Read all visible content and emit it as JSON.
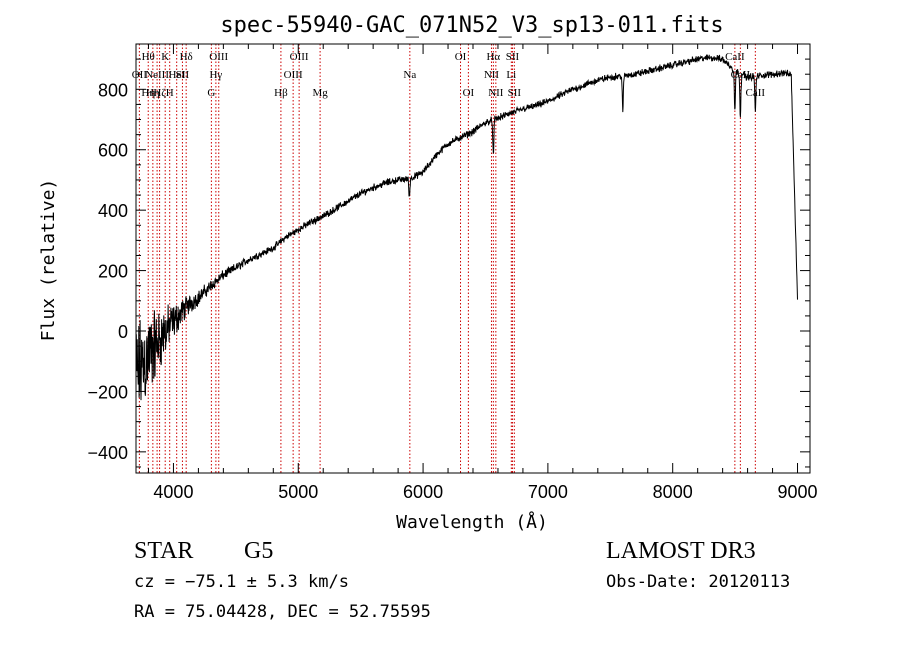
{
  "chart_data": {
    "type": "line",
    "title": "spec-55940-GAC_071N52_V3_sp13-011.fits",
    "xlabel": "Wavelength (Å)",
    "ylabel": "Flux (relative)",
    "xlim": [
      3700,
      9100
    ],
    "ylim": [
      -470,
      950
    ],
    "xticks": [
      4000,
      5000,
      6000,
      7000,
      8000,
      9000
    ],
    "yticks": [
      -400,
      -200,
      0,
      200,
      400,
      600,
      800
    ],
    "x_minor_step": 200,
    "y_minor_step": 50,
    "spectrum": {
      "x": [
        3700,
        3800,
        3900,
        4000,
        4100,
        4200,
        4300,
        4400,
        4500,
        4600,
        4700,
        4800,
        4900,
        5000,
        5100,
        5200,
        5300,
        5400,
        5500,
        5600,
        5700,
        5800,
        5900,
        6000,
        6100,
        6200,
        6300,
        6400,
        6500,
        6600,
        6700,
        6800,
        6900,
        7000,
        7100,
        7200,
        7300,
        7400,
        7500,
        7600,
        7700,
        7800,
        7900,
        8000,
        8100,
        8200,
        8300,
        8400,
        8500,
        8600,
        8700,
        8800,
        8900,
        8950,
        9000
      ],
      "y": [
        -150,
        -80,
        -20,
        30,
        80,
        110,
        150,
        185,
        210,
        235,
        255,
        275,
        310,
        335,
        360,
        380,
        405,
        430,
        455,
        475,
        490,
        500,
        505,
        525,
        580,
        620,
        640,
        660,
        690,
        705,
        720,
        735,
        745,
        760,
        780,
        800,
        815,
        830,
        840,
        845,
        850,
        860,
        870,
        880,
        890,
        900,
        905,
        900,
        860,
        840,
        845,
        850,
        855,
        845,
        100
      ],
      "noise_amplitude": [
        220,
        180,
        120,
        70,
        45,
        30,
        25,
        20,
        18,
        16,
        14,
        14,
        14,
        14,
        14,
        14,
        14,
        14,
        14,
        14,
        14,
        14,
        14,
        14,
        14,
        14,
        14,
        14,
        14,
        14,
        14,
        14,
        14,
        14,
        14,
        14,
        14,
        14,
        14,
        14,
        14,
        14,
        14,
        14,
        14,
        14,
        14,
        14,
        14,
        14,
        14,
        14,
        14,
        14,
        14
      ],
      "absorption_dips": [
        {
          "x": 5890,
          "depth": 60
        },
        {
          "x": 6563,
          "depth": 120
        },
        {
          "x": 7600,
          "depth": 120
        },
        {
          "x": 8498,
          "depth": 130
        },
        {
          "x": 8542,
          "depth": 140
        },
        {
          "x": 8662,
          "depth": 120
        }
      ]
    },
    "lines": [
      {
        "x": 3727,
        "labels": [
          "OII"
        ],
        "rows": [
          1
        ]
      },
      {
        "x": 3798,
        "labels": [
          "Hθ",
          "Hη"
        ],
        "rows": [
          0,
          2
        ]
      },
      {
        "x": 3835,
        "labels": [
          "Hη"
        ],
        "rows": [
          2
        ]
      },
      {
        "x": 3869,
        "labels": [
          "NeIII"
        ],
        "rows": [
          1
        ]
      },
      {
        "x": 3889,
        "labels": [
          "Hζ"
        ],
        "rows": [
          2
        ]
      },
      {
        "x": 3934,
        "labels": [
          "K"
        ],
        "rows": [
          0
        ]
      },
      {
        "x": 3970,
        "labels": [
          "H"
        ],
        "rows": [
          2
        ]
      },
      {
        "x": 4026,
        "labels": [
          "HeI"
        ],
        "rows": [
          1
        ]
      },
      {
        "x": 4072,
        "labels": [
          "SII"
        ],
        "rows": [
          1
        ]
      },
      {
        "x": 4102,
        "labels": [
          "Hδ"
        ],
        "rows": [
          0
        ]
      },
      {
        "x": 4304,
        "labels": [
          "G"
        ],
        "rows": [
          2
        ]
      },
      {
        "x": 4340,
        "labels": [
          "Hγ"
        ],
        "rows": [
          1
        ]
      },
      {
        "x": 4363,
        "labels": [
          "OIII"
        ],
        "rows": [
          0
        ]
      },
      {
        "x": 4861,
        "labels": [
          "Hβ"
        ],
        "rows": [
          2
        ]
      },
      {
        "x": 4959,
        "labels": [
          "OIII"
        ],
        "rows": [
          1
        ]
      },
      {
        "x": 5007,
        "labels": [
          "OIII"
        ],
        "rows": [
          0
        ]
      },
      {
        "x": 5175,
        "labels": [
          "Mg"
        ],
        "rows": [
          2
        ]
      },
      {
        "x": 5894,
        "labels": [
          "Na"
        ],
        "rows": [
          1
        ]
      },
      {
        "x": 6300,
        "labels": [
          "OI"
        ],
        "rows": [
          0
        ]
      },
      {
        "x": 6363,
        "labels": [
          "OI"
        ],
        "rows": [
          2
        ]
      },
      {
        "x": 6548,
        "labels": [
          "NII"
        ],
        "rows": [
          1
        ]
      },
      {
        "x": 6563,
        "labels": [
          "Hα"
        ],
        "rows": [
          0
        ]
      },
      {
        "x": 6583,
        "labels": [
          "NII"
        ],
        "rows": [
          2
        ]
      },
      {
        "x": 6707,
        "labels": [
          "Li"
        ],
        "rows": [
          1
        ]
      },
      {
        "x": 6716,
        "labels": [
          "SII"
        ],
        "rows": [
          0
        ]
      },
      {
        "x": 6731,
        "labels": [
          "SII"
        ],
        "rows": [
          2
        ]
      },
      {
        "x": 8498,
        "labels": [
          "CaII"
        ],
        "rows": [
          0
        ]
      },
      {
        "x": 8542,
        "labels": [
          "CaII"
        ],
        "rows": [
          1
        ]
      },
      {
        "x": 8662,
        "labels": [
          "CaII"
        ],
        "rows": [
          2
        ]
      }
    ]
  },
  "colors": {
    "line_markers": "#cc0000",
    "spectrum": "#000000",
    "background": "#ffffff"
  },
  "info": {
    "class": "STAR",
    "subclass": "G5",
    "survey": "LAMOST DR3",
    "cz": "cz = −75.1 ± 5.3 km/s",
    "obs_date": "Obs-Date: 20120113",
    "coords": "RA =  75.04428, DEC =  52.75595"
  }
}
